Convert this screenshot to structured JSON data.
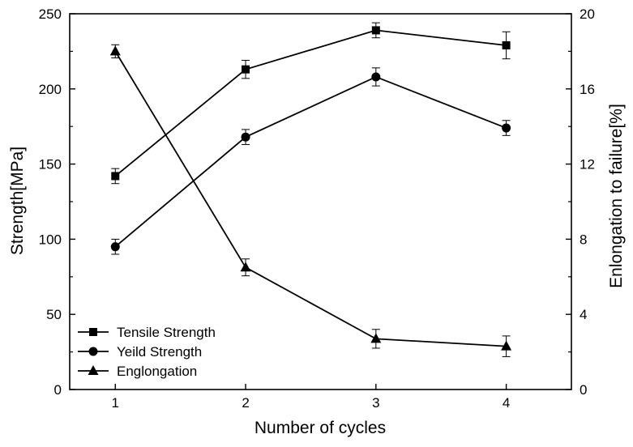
{
  "chart_data": {
    "type": "line",
    "x": [
      1,
      2,
      3,
      4
    ],
    "xlabel": "Number of cycles",
    "ylabel": "Strength[MPa]",
    "y2label": "Enlongation to failure[%]",
    "xlim": [
      0.65,
      4.5
    ],
    "ylim": [
      0,
      250
    ],
    "y2lim": [
      0,
      20
    ],
    "xticks": [
      1,
      2,
      3,
      4
    ],
    "yticks": [
      0,
      50,
      100,
      150,
      200,
      250
    ],
    "y2ticks": [
      0,
      4,
      8,
      12,
      16,
      20
    ],
    "grid": false,
    "legend_position": "bottom-left",
    "series": [
      {
        "name": "Tensile Strength",
        "axis": "left",
        "marker": "square",
        "color": "#000000",
        "values": [
          142,
          213,
          239,
          229
        ],
        "errors": [
          5,
          6,
          5,
          9
        ]
      },
      {
        "name": "Yeild Strength",
        "axis": "left",
        "marker": "circle",
        "color": "#000000",
        "values": [
          95,
          168,
          208,
          174
        ],
        "errors": [
          5,
          5,
          6,
          5
        ]
      },
      {
        "name": "Englongation",
        "axis": "right",
        "marker": "triangle",
        "color": "#000000",
        "values": [
          18,
          6.5,
          2.7,
          2.3
        ],
        "errors": [
          0.35,
          0.45,
          0.5,
          0.55
        ]
      }
    ]
  }
}
